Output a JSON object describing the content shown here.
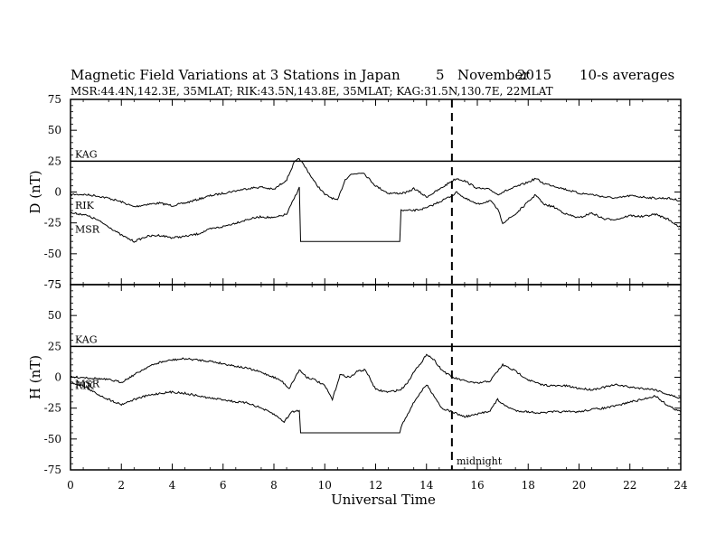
{
  "header": {
    "title": "Magnetic Field Variations at 3 Stations in Japan",
    "date_day": "5",
    "date_month": "November",
    "date_year": "2015",
    "averaging": "10-s averages",
    "subtitle": "MSR:44.4N,142.3E, 35MLAT;  RIK:43.5N,143.8E, 35MLAT;  KAG:31.5N,130.7E, 22MLAT"
  },
  "annotation": {
    "midnight_label": "midnight",
    "midnight_ut": 15
  },
  "chart_data": {
    "type": "line",
    "xlabel": "Universal Time",
    "xlim": [
      0,
      24
    ],
    "xticks": [
      0,
      2,
      4,
      6,
      8,
      10,
      12,
      14,
      16,
      18,
      20,
      22,
      24
    ],
    "panels": [
      {
        "ylabel": "D (nT)",
        "ylim": [
          -75,
          75
        ],
        "yticks": [
          75,
          50,
          25,
          0,
          -25,
          -50,
          -75
        ],
        "series": [
          {
            "name": "KAG",
            "x": [
              0,
              24
            ],
            "y": [
              25,
              25
            ]
          },
          {
            "name": "RIK",
            "x": [
              0,
              0.5,
              1,
              1.5,
              2,
              2.5,
              3,
              3.5,
              4,
              4.5,
              5,
              5.5,
              6,
              6.5,
              7,
              7.5,
              8,
              8.5,
              8.8,
              9,
              9.3,
              9.6,
              10,
              10.5,
              10.8,
              11,
              11.5,
              12,
              12.5,
              13,
              13.3,
              13.5,
              14,
              14.5,
              15,
              15.2,
              15.5,
              16,
              16.5,
              16.8,
              17,
              17.5,
              18,
              18.3,
              18.6,
              19,
              19.5,
              20,
              20.5,
              21,
              21.5,
              22,
              22.5,
              23,
              23.5,
              24
            ],
            "y": [
              -2,
              -2,
              -3,
              -5,
              -8,
              -12,
              -10,
              -9,
              -11,
              -9,
              -6,
              -3,
              -1,
              1,
              3,
              4,
              2,
              10,
              24,
              27,
              18,
              8,
              -2,
              -7,
              10,
              14,
              16,
              5,
              -1,
              -1,
              0,
              3,
              -4,
              2,
              9,
              11,
              9,
              3,
              2,
              -2,
              0,
              4,
              8,
              11,
              7,
              5,
              2,
              -1,
              -2,
              -4,
              -5,
              -3,
              -4,
              -5,
              -5,
              -7
            ]
          },
          {
            "name": "MSR",
            "x": [
              0,
              0.5,
              1,
              1.5,
              2,
              2.5,
              3,
              3.5,
              4,
              4.5,
              5,
              5.5,
              6,
              6.5,
              7,
              7.5,
              8,
              8.5,
              8.8,
              9,
              9.05,
              12.95,
              13,
              13.5,
              14,
              14.5,
              15,
              15.2,
              15.5,
              16,
              16.5,
              16.8,
              17,
              17.5,
              18,
              18.3,
              18.6,
              19,
              19.5,
              20,
              20.5,
              21,
              21.5,
              22,
              22.5,
              23,
              23.5,
              24
            ],
            "y": [
              -17,
              -18,
              -22,
              -28,
              -35,
              -40,
              -36,
              -35,
              -37,
              -36,
              -34,
              -30,
              -28,
              -25,
              -22,
              -20,
              -21,
              -18,
              -5,
              4,
              -40,
              -40,
              -15,
              -15,
              -13,
              -8,
              -3,
              0,
              -5,
              -10,
              -7,
              -14,
              -25,
              -18,
              -8,
              -2,
              -10,
              -12,
              -18,
              -21,
              -17,
              -22,
              -22,
              -19,
              -20,
              -18,
              -22,
              -29
            ]
          }
        ]
      },
      {
        "ylabel": "H (nT)",
        "ylim": [
          -75,
          75
        ],
        "yticks": [
          75,
          50,
          25,
          0,
          -25,
          -50,
          -75
        ],
        "series": [
          {
            "name": "KAG",
            "x": [
              0,
              24
            ],
            "y": [
              25,
              25
            ]
          },
          {
            "name": "RIK",
            "x": [
              0,
              0.5,
              1,
              1.5,
              2,
              2.5,
              3,
              3.5,
              4,
              4.5,
              5,
              5.5,
              6,
              6.5,
              7,
              7.5,
              8,
              8.3,
              8.6,
              9,
              9.3,
              9.6,
              10,
              10.3,
              10.6,
              11,
              11.3,
              11.6,
              12,
              12.5,
              13,
              13.3,
              13.6,
              13.8,
              14,
              14.3,
              14.6,
              15,
              15.5,
              16,
              16.5,
              16.8,
              17,
              17.5,
              18,
              18.5,
              19,
              19.5,
              20,
              20.5,
              21,
              21.5,
              22,
              22.5,
              23,
              23.5,
              24
            ],
            "y": [
              0,
              0,
              -1,
              -2,
              -4,
              2,
              8,
              12,
              14,
              15,
              14,
              13,
              11,
              9,
              7,
              4,
              0,
              -3,
              -9,
              6,
              0,
              -2,
              -7,
              -18,
              2,
              0,
              5,
              6,
              -10,
              -12,
              -10,
              -3,
              8,
              11,
              19,
              14,
              6,
              0,
              -3,
              -5,
              -3,
              5,
              10,
              5,
              -2,
              -6,
              -7,
              -7,
              -9,
              -10,
              -8,
              -6,
              -8,
              -9,
              -10,
              -14,
              -17
            ]
          },
          {
            "name": "MSR",
            "x": [
              0,
              0.5,
              1,
              1.5,
              2,
              2.5,
              3,
              3.5,
              4,
              4.5,
              5,
              5.5,
              6,
              6.5,
              7,
              7.5,
              8,
              8.4,
              8.7,
              9,
              9.05,
              12.95,
              13,
              13.3,
              13.6,
              14,
              14.3,
              14.6,
              15,
              15.5,
              16,
              16.5,
              16.8,
              17,
              17.5,
              18,
              18.5,
              19,
              19.5,
              20,
              20.5,
              21,
              21.5,
              22,
              22.5,
              23,
              23.5,
              24
            ],
            "y": [
              -4,
              -7,
              -13,
              -18,
              -22,
              -18,
              -15,
              -13,
              -12,
              -13,
              -15,
              -17,
              -18,
              -20,
              -21,
              -25,
              -30,
              -36,
              -28,
              -27,
              -45,
              -45,
              -40,
              -28,
              -17,
              -6,
              -15,
              -25,
              -28,
              -32,
              -30,
              -27,
              -18,
              -22,
              -27,
              -28,
              -29,
              -28,
              -28,
              -28,
              -26,
              -25,
              -23,
              -20,
              -18,
              -15,
              -23,
              -28
            ]
          }
        ]
      }
    ]
  }
}
